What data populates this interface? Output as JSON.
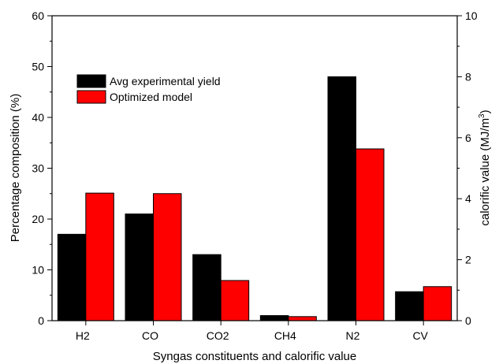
{
  "chart_data": {
    "type": "bar",
    "xlabel": "Syngas constituents and calorific value",
    "ylabel_left": "Percentage composition (%)",
    "ylabel_right_main": "calorific value (MJ/m",
    "ylabel_right_sup": "3",
    "ylabel_right_end": ")",
    "categories": [
      "H2",
      "CO",
      "CO2",
      "CH4",
      "N2",
      "CV"
    ],
    "series": [
      {
        "name": "Avg experimental yield",
        "color": "#000000",
        "values": [
          17,
          21,
          13,
          1,
          48,
          5.7
        ]
      },
      {
        "name": "Optimized model",
        "color": "#ff0000",
        "values": [
          25.1,
          25.0,
          7.9,
          0.8,
          33.8,
          6.7
        ]
      }
    ],
    "ylim_left": [
      0,
      60
    ],
    "yticks_left": [
      "0",
      "10",
      "20",
      "30",
      "40",
      "50",
      "60"
    ],
    "ylim_right": [
      0,
      10
    ],
    "yticks_right": [
      "0",
      "2",
      "4",
      "6",
      "8",
      "10"
    ],
    "legend_position": "top-left",
    "grid": false
  }
}
